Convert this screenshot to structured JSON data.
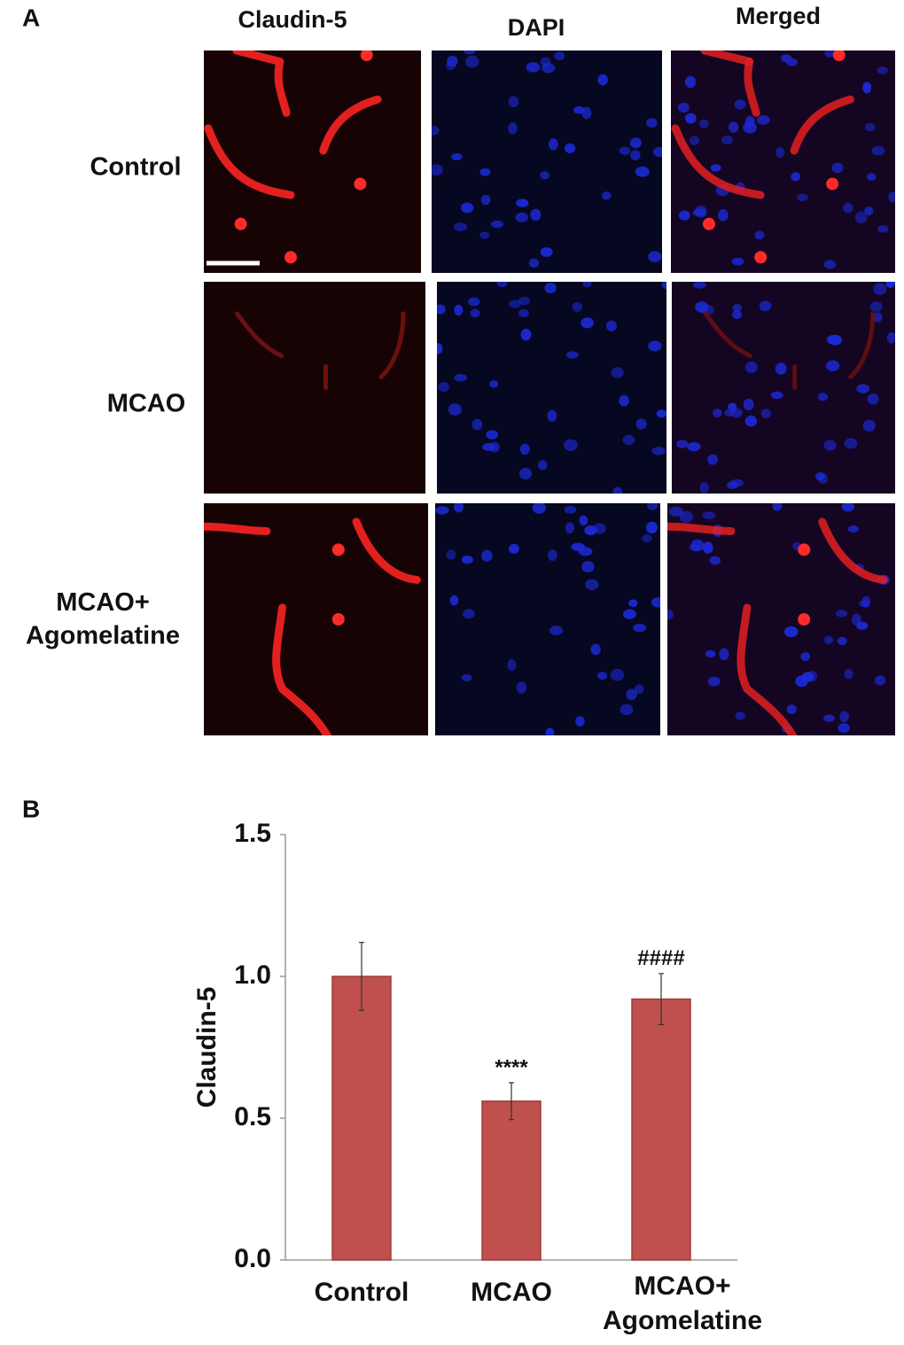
{
  "panels": {
    "a": {
      "label": "A",
      "columns": [
        "Claudin-5",
        "DAPI",
        "Merged"
      ],
      "rows": [
        "Control",
        "MCAO",
        "MCAO+\nAgomelatine"
      ]
    },
    "b": {
      "label": "B"
    }
  },
  "chart_data": {
    "type": "bar",
    "ylabel": "Claudin-5",
    "categories": [
      "Control",
      "MCAO",
      "MCAO+\nAgomelatine"
    ],
    "values": [
      1.0,
      0.56,
      0.92
    ],
    "errors": [
      0.12,
      0.065,
      0.09
    ],
    "color": "#c0504d",
    "annotations": [
      {
        "text": "****",
        "x": "MCAO"
      },
      {
        "text": "####",
        "x": "MCAO+\nAgomelatine"
      }
    ],
    "ylim": [
      0,
      1.5
    ],
    "yticks": [
      {
        "value": 0,
        "label": "0.0"
      },
      {
        "value": 0.5,
        "label": "0.5"
      },
      {
        "value": 1,
        "label": "1.0"
      },
      {
        "value": 1.5,
        "label": "1.5"
      }
    ],
    "grid": false
  }
}
